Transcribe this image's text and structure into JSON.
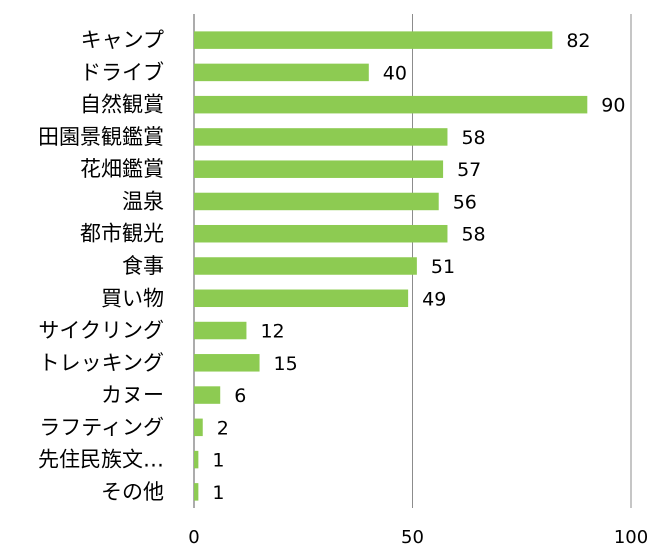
{
  "chart_data": {
    "type": "bar",
    "orientation": "horizontal",
    "categories": [
      "キャンプ",
      "ドライブ",
      "自然観賞",
      "田園景観鑑賞",
      "花畑鑑賞",
      "温泉",
      "都市観光",
      "食事",
      "買い物",
      "サイクリング",
      "トレッキング",
      "カヌー",
      "ラフティング",
      "先住民族文…",
      "その他"
    ],
    "values": [
      82,
      40,
      90,
      58,
      57,
      56,
      58,
      51,
      49,
      12,
      15,
      6,
      2,
      1,
      1
    ],
    "xlim": [
      0,
      100
    ],
    "xticks": [
      0,
      50,
      100
    ],
    "title": "",
    "xlabel": "",
    "ylabel": "",
    "grid": "vertical",
    "legend": "none",
    "colors": {
      "bar": "#8DCB52",
      "grid": "#8C8C8C",
      "axis": "#7F7F7F"
    }
  }
}
